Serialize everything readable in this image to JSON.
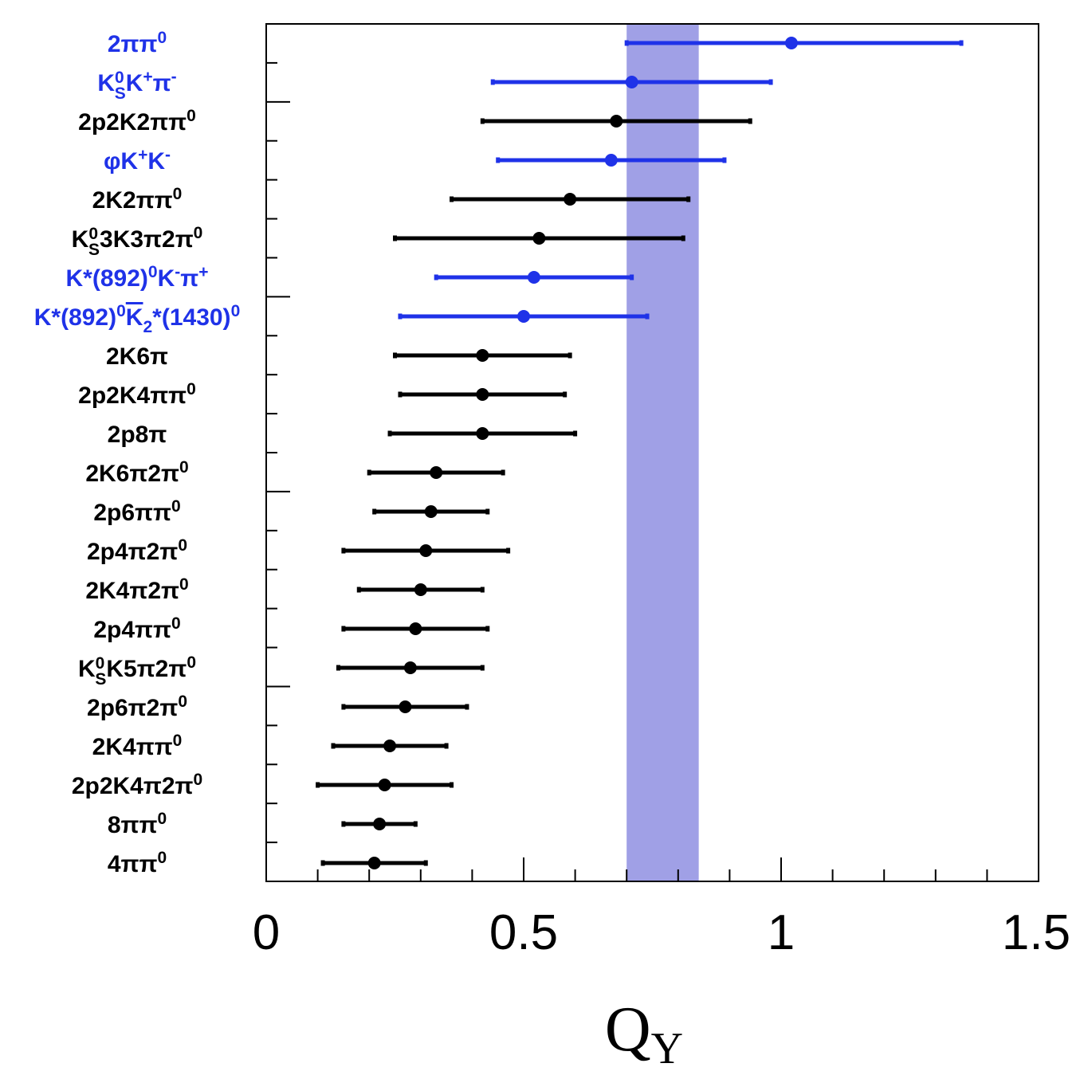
{
  "chart_data": {
    "type": "scatter",
    "orientation": "horizontal-errorbars",
    "xlabel": "Q",
    "xlabel_sub": "Y",
    "xlim": [
      0,
      1.5
    ],
    "x_ticks": [
      "0",
      "0.5",
      "1",
      "1.5"
    ],
    "band": {
      "from": 0.7,
      "to": 0.84,
      "color": "#a0a0e6"
    },
    "colors": {
      "highlight": "#1f32e8",
      "normal": "#000000"
    },
    "points": [
      {
        "label": [
          "2ππ",
          {
            "sup": "0"
          }
        ],
        "value": 1.02,
        "low": 0.7,
        "high": 1.35,
        "highlight": true
      },
      {
        "label": [
          "K",
          {
            "sup": "0",
            "sub": "S"
          },
          "K",
          {
            "sup": "+"
          },
          "π",
          {
            "sup": "-"
          }
        ],
        "value": 0.71,
        "low": 0.44,
        "high": 0.98,
        "highlight": true
      },
      {
        "label": [
          "2p2K2ππ",
          {
            "sup": "0"
          }
        ],
        "value": 0.68,
        "low": 0.42,
        "high": 0.94,
        "highlight": false
      },
      {
        "label": [
          "φK",
          {
            "sup": "+"
          },
          "K",
          {
            "sup": "-"
          }
        ],
        "value": 0.67,
        "low": 0.45,
        "high": 0.89,
        "highlight": true
      },
      {
        "label": [
          "2K2ππ",
          {
            "sup": "0"
          }
        ],
        "value": 0.59,
        "low": 0.36,
        "high": 0.82,
        "highlight": false
      },
      {
        "label": [
          "K",
          {
            "sup": "0",
            "sub": "S"
          },
          "3K3π2π",
          {
            "sup": "0"
          }
        ],
        "value": 0.53,
        "low": 0.25,
        "high": 0.81,
        "highlight": false
      },
      {
        "label": [
          "K*(892)",
          {
            "sup": "0"
          },
          "K",
          {
            "sup": "-"
          },
          "π",
          {
            "sup": "+"
          }
        ],
        "value": 0.52,
        "low": 0.33,
        "high": 0.71,
        "highlight": true
      },
      {
        "label": [
          "K*(892)",
          {
            "sup": "0"
          },
          {
            "over": "K"
          },
          {
            "sub": "2"
          },
          "*(1430)",
          {
            "sup": "0"
          }
        ],
        "value": 0.5,
        "low": 0.26,
        "high": 0.74,
        "highlight": true
      },
      {
        "label": [
          "2K6π"
        ],
        "value": 0.42,
        "low": 0.25,
        "high": 0.59,
        "highlight": false
      },
      {
        "label": [
          "2p2K4ππ",
          {
            "sup": "0"
          }
        ],
        "value": 0.42,
        "low": 0.26,
        "high": 0.58,
        "highlight": false
      },
      {
        "label": [
          "2p8π"
        ],
        "value": 0.42,
        "low": 0.24,
        "high": 0.6,
        "highlight": false
      },
      {
        "label": [
          "2K6π2π",
          {
            "sup": "0"
          }
        ],
        "value": 0.33,
        "low": 0.2,
        "high": 0.46,
        "highlight": false
      },
      {
        "label": [
          "2p6ππ",
          {
            "sup": "0"
          }
        ],
        "value": 0.32,
        "low": 0.21,
        "high": 0.43,
        "highlight": false
      },
      {
        "label": [
          "2p4π2π",
          {
            "sup": "0"
          }
        ],
        "value": 0.31,
        "low": 0.15,
        "high": 0.47,
        "highlight": false
      },
      {
        "label": [
          "2K4π2π",
          {
            "sup": "0"
          }
        ],
        "value": 0.3,
        "low": 0.18,
        "high": 0.42,
        "highlight": false
      },
      {
        "label": [
          "2p4ππ",
          {
            "sup": "0"
          }
        ],
        "value": 0.29,
        "low": 0.15,
        "high": 0.43,
        "highlight": false
      },
      {
        "label": [
          "K",
          {
            "sup": "0",
            "sub": "S"
          },
          "K5π2π",
          {
            "sup": "0"
          }
        ],
        "value": 0.28,
        "low": 0.14,
        "high": 0.42,
        "highlight": false
      },
      {
        "label": [
          "2p6π2π",
          {
            "sup": "0"
          }
        ],
        "value": 0.27,
        "low": 0.15,
        "high": 0.39,
        "highlight": false
      },
      {
        "label": [
          "2K4ππ",
          {
            "sup": "0"
          }
        ],
        "value": 0.24,
        "low": 0.13,
        "high": 0.35,
        "highlight": false
      },
      {
        "label": [
          "2p2K4π2π",
          {
            "sup": "0"
          }
        ],
        "value": 0.23,
        "low": 0.1,
        "high": 0.36,
        "highlight": false
      },
      {
        "label": [
          "8ππ",
          {
            "sup": "0"
          }
        ],
        "value": 0.22,
        "low": 0.15,
        "high": 0.29,
        "highlight": false
      },
      {
        "label": [
          "4ππ",
          {
            "sup": "0"
          }
        ],
        "value": 0.21,
        "low": 0.11,
        "high": 0.31,
        "highlight": false
      }
    ]
  }
}
